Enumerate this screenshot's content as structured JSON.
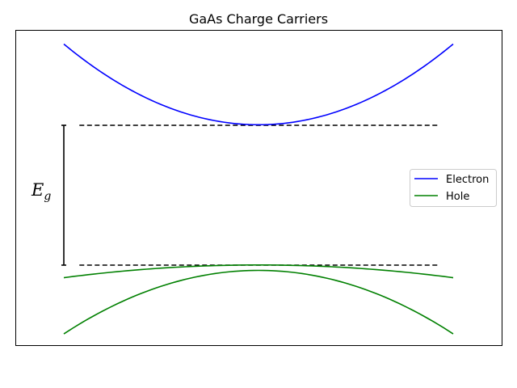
{
  "chart_data": {
    "type": "line",
    "title": "GaAs Charge Carriers",
    "xlabel": "",
    "ylabel": "",
    "xlim": [
      -1.0,
      1.0
    ],
    "ylim": [
      -1.2,
      1.2
    ],
    "grid": false,
    "ticks_visible": false,
    "legend_placement": "center-right",
    "band_edges": {
      "conduction": 0.5,
      "valence": -0.5,
      "dashed_x_range": [
        -0.92,
        0.92
      ]
    },
    "gap_annotation": {
      "label": "E",
      "subscript": "g",
      "from": -0.5,
      "to": 0.5,
      "color": "#000000"
    },
    "series": [
      {
        "name": "Electron",
        "color": "#0000ff",
        "x": [
          -1.0,
          -0.75,
          -0.5,
          -0.25,
          0.0,
          0.25,
          0.5,
          0.75,
          1.0
        ],
        "y": [
          1.08,
          0.83,
          0.65,
          0.54,
          0.5,
          0.54,
          0.65,
          0.83,
          1.08
        ]
      },
      {
        "name": "Hole",
        "color": "#008000",
        "x": [
          -1.0,
          -0.75,
          -0.5,
          -0.25,
          0.0,
          0.25,
          0.5,
          0.75,
          1.0
        ],
        "y": [
          -0.59,
          -0.55,
          -0.52,
          -0.505,
          -0.5,
          -0.505,
          -0.52,
          -0.55,
          -0.59
        ]
      },
      {
        "name": "",
        "color": "#008000",
        "x": [
          -1.0,
          -0.75,
          -0.5,
          -0.25,
          0.0,
          0.25,
          0.5,
          0.75,
          1.0
        ],
        "y": [
          -0.97,
          -0.82,
          -0.68,
          -0.55,
          -0.5,
          -0.55,
          -0.68,
          -0.82,
          -0.97
        ]
      }
    ]
  }
}
